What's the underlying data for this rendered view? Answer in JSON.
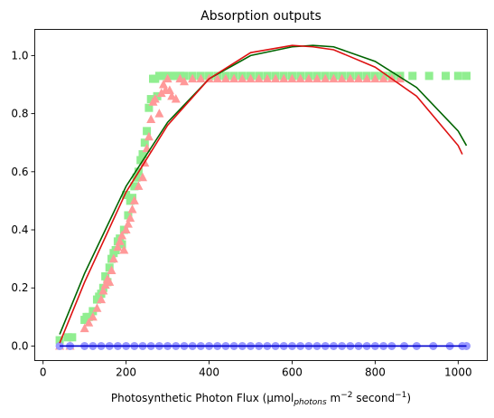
{
  "chart_data": {
    "type": "scatter",
    "title": "Absorption outputs",
    "xlabel": {
      "parts": [
        {
          "text": "Photosynthetic Photon Flux (μmol",
          "style": "normal"
        },
        {
          "text": "photons",
          "style": "sub"
        },
        {
          "text": " m",
          "style": "normal"
        },
        {
          "text": "−2",
          "style": "sup"
        },
        {
          "text": " second",
          "style": "normal"
        },
        {
          "text": "−1",
          "style": "sup"
        },
        {
          "text": ")",
          "style": "normal"
        }
      ]
    },
    "ylabel": "",
    "xlim": [
      -20,
      1070
    ],
    "ylim": [
      -0.05,
      1.09
    ],
    "xticks": [
      0,
      200,
      400,
      600,
      800,
      1000
    ],
    "xtick_labels": [
      "0",
      "200",
      "400",
      "600",
      "800",
      "1000"
    ],
    "yticks": [
      0.0,
      0.2,
      0.4,
      0.6,
      0.8,
      1.0
    ],
    "ytick_labels": [
      "0.0",
      "0.2",
      "0.4",
      "0.6",
      "0.8",
      "1.0"
    ],
    "grid": false,
    "series": [
      {
        "marker": "square",
        "color": "#90ee90",
        "x": [
          40,
          60,
          70,
          100,
          105,
          110,
          120,
          130,
          135,
          140,
          145,
          150,
          155,
          160,
          165,
          170,
          175,
          180,
          185,
          190,
          195,
          200,
          205,
          210,
          215,
          220,
          225,
          230,
          235,
          240,
          245,
          250,
          255,
          260,
          265,
          270,
          275,
          280,
          290,
          300,
          310,
          320,
          330,
          340,
          360,
          380,
          400,
          420,
          440,
          460,
          480,
          500,
          520,
          540,
          560,
          580,
          600,
          620,
          640,
          660,
          680,
          700,
          720,
          740,
          760,
          780,
          800,
          820,
          840,
          860,
          890,
          930,
          970,
          1000,
          1020
        ],
        "y": [
          0.02,
          0.03,
          0.03,
          0.09,
          0.1,
          0.1,
          0.12,
          0.16,
          0.17,
          0.18,
          0.2,
          0.24,
          0.22,
          0.27,
          0.3,
          0.32,
          0.33,
          0.36,
          0.37,
          0.35,
          0.4,
          0.52,
          0.45,
          0.5,
          0.51,
          0.55,
          0.58,
          0.6,
          0.64,
          0.66,
          0.7,
          0.74,
          0.82,
          0.85,
          0.92,
          0.92,
          0.86,
          0.93,
          0.93,
          0.93,
          0.93,
          0.93,
          0.93,
          0.93,
          0.93,
          0.93,
          0.93,
          0.93,
          0.93,
          0.93,
          0.93,
          0.93,
          0.93,
          0.93,
          0.93,
          0.93,
          0.93,
          0.93,
          0.93,
          0.93,
          0.93,
          0.93,
          0.93,
          0.93,
          0.93,
          0.93,
          0.93,
          0.93,
          0.93,
          0.93,
          0.93,
          0.93,
          0.93,
          0.93,
          0.93
        ]
      },
      {
        "marker": "triangle",
        "color": "#ff9999",
        "x": [
          40,
          65,
          100,
          110,
          120,
          130,
          140,
          145,
          150,
          155,
          160,
          165,
          170,
          180,
          185,
          190,
          195,
          200,
          205,
          210,
          215,
          220,
          230,
          240,
          245,
          250,
          255,
          260,
          265,
          270,
          280,
          285,
          290,
          295,
          300,
          305,
          310,
          320,
          330,
          340,
          360,
          380,
          400,
          420,
          440,
          460,
          480,
          500,
          520,
          540,
          560,
          580,
          600,
          620,
          640,
          660,
          680,
          700,
          720,
          740,
          760,
          780,
          800,
          820,
          840,
          860
        ],
        "y": [
          0.0,
          0.0,
          0.06,
          0.08,
          0.1,
          0.13,
          0.16,
          0.19,
          0.21,
          0.23,
          0.22,
          0.26,
          0.3,
          0.34,
          0.36,
          0.38,
          0.33,
          0.4,
          0.42,
          0.44,
          0.47,
          0.5,
          0.55,
          0.58,
          0.63,
          0.68,
          0.72,
          0.78,
          0.84,
          0.85,
          0.8,
          0.87,
          0.9,
          0.88,
          0.92,
          0.88,
          0.86,
          0.85,
          0.92,
          0.91,
          0.92,
          0.92,
          0.92,
          0.92,
          0.92,
          0.92,
          0.92,
          0.92,
          0.92,
          0.92,
          0.92,
          0.92,
          0.92,
          0.92,
          0.92,
          0.92,
          0.92,
          0.92,
          0.92,
          0.92,
          0.92,
          0.92,
          0.92,
          0.92,
          0.92,
          0.92
        ]
      },
      {
        "marker": "circle",
        "color": "#9999ff",
        "x": [
          40,
          65,
          100,
          120,
          140,
          160,
          180,
          200,
          220,
          240,
          260,
          280,
          300,
          320,
          340,
          360,
          380,
          400,
          420,
          440,
          460,
          480,
          500,
          520,
          540,
          560,
          580,
          600,
          620,
          640,
          660,
          680,
          700,
          720,
          740,
          760,
          780,
          800,
          820,
          840,
          870,
          900,
          940,
          980,
          1010,
          1020
        ],
        "y": [
          0,
          0,
          0,
          0,
          0,
          0,
          0,
          0,
          0,
          0,
          0,
          0,
          0,
          0,
          0,
          0,
          0,
          0,
          0,
          0,
          0,
          0,
          0,
          0,
          0,
          0,
          0,
          0,
          0,
          0,
          0,
          0,
          0,
          0,
          0,
          0,
          0,
          0,
          0,
          0,
          0,
          0,
          0,
          0,
          0,
          0
        ]
      },
      {
        "marker": "line",
        "color": "#006400",
        "x": [
          40,
          100,
          200,
          300,
          400,
          500,
          600,
          650,
          700,
          800,
          900,
          1000,
          1020
        ],
        "y": [
          0.04,
          0.25,
          0.55,
          0.77,
          0.92,
          1.0,
          1.03,
          1.035,
          1.03,
          0.98,
          0.89,
          0.74,
          0.69
        ]
      },
      {
        "marker": "line",
        "color": "#dd1111",
        "x": [
          40,
          100,
          200,
          300,
          400,
          500,
          600,
          650,
          700,
          800,
          900,
          1000,
          1010
        ],
        "y": [
          0.01,
          0.22,
          0.53,
          0.76,
          0.92,
          1.01,
          1.035,
          1.03,
          1.02,
          0.96,
          0.86,
          0.69,
          0.66
        ]
      },
      {
        "marker": "line",
        "color": "#0000cc",
        "x": [
          40,
          1020
        ],
        "y": [
          0.0,
          0.0
        ]
      }
    ]
  }
}
